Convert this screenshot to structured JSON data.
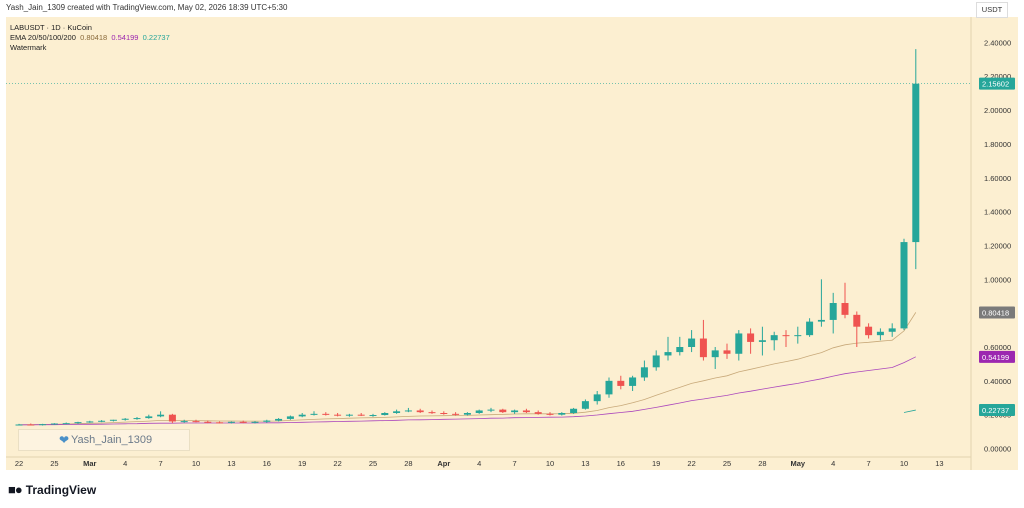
{
  "header": {
    "text": "Yash_Jain_1309 created with TradingView.com, May 02, 2026 18:39 UTC+5:30"
  },
  "legend": {
    "symbol": "LABUSDT · 1D · KuCoin",
    "ema_label": "EMA 20/50/100/200",
    "ema_values": [
      "0.80418",
      "0.54199",
      "0.22737"
    ],
    "watermark_label": "Watermark"
  },
  "watermark": {
    "text": "Yash_Jain_1309",
    "icon": "heart-icon"
  },
  "currency": "USDT",
  "footer": {
    "brand": "TradingView",
    "icon": "tradingview-logo-icon"
  },
  "colors": {
    "bg": "#fcefd1",
    "up": "#26a69a",
    "down": "#ef5350",
    "ema20": "#c8a97a",
    "ema50": "#ab47bc",
    "ema100": "#26a69a"
  },
  "chart_data": {
    "type": "candlestick",
    "ylim": [
      -0.05,
      2.55
    ],
    "y_ticks": [
      "2.40000",
      "2.20000",
      "2.00000",
      "1.80000",
      "1.60000",
      "1.40000",
      "1.20000",
      "1.00000",
      "0.80000",
      "0.60000",
      "0.40000",
      "0.20000",
      "0.00000"
    ],
    "x_ticks": [
      "22",
      "25",
      "Mar",
      "4",
      "7",
      "10",
      "13",
      "16",
      "19",
      "22",
      "25",
      "28",
      "Apr",
      "4",
      "7",
      "10",
      "13",
      "16",
      "19",
      "22",
      "25",
      "28",
      "May",
      "4",
      "7",
      "10",
      "13"
    ],
    "price_labels": [
      {
        "label": "2.15602",
        "value": 2.156,
        "color": "#26a69a"
      },
      {
        "label": "0.80418",
        "value": 0.80418,
        "color": "#7a7a7a"
      },
      {
        "label": "0.54199",
        "value": 0.54199,
        "color": "#9c27b0"
      },
      {
        "label": "0.22737",
        "value": 0.22737,
        "color": "#26a69a"
      }
    ],
    "candles": [
      [
        0.14,
        0.146,
        0.136,
        0.142
      ],
      [
        0.142,
        0.148,
        0.138,
        0.14
      ],
      [
        0.14,
        0.146,
        0.136,
        0.144
      ],
      [
        0.144,
        0.15,
        0.14,
        0.148
      ],
      [
        0.148,
        0.154,
        0.144,
        0.15
      ],
      [
        0.15,
        0.158,
        0.146,
        0.156
      ],
      [
        0.156,
        0.164,
        0.152,
        0.16
      ],
      [
        0.16,
        0.168,
        0.156,
        0.164
      ],
      [
        0.164,
        0.17,
        0.16,
        0.17
      ],
      [
        0.17,
        0.18,
        0.165,
        0.176
      ],
      [
        0.176,
        0.186,
        0.17,
        0.18
      ],
      [
        0.18,
        0.2,
        0.176,
        0.19
      ],
      [
        0.19,
        0.22,
        0.185,
        0.2
      ],
      [
        0.2,
        0.205,
        0.15,
        0.16
      ],
      [
        0.16,
        0.17,
        0.152,
        0.162
      ],
      [
        0.162,
        0.17,
        0.155,
        0.158
      ],
      [
        0.158,
        0.165,
        0.15,
        0.155
      ],
      [
        0.155,
        0.16,
        0.148,
        0.152
      ],
      [
        0.152,
        0.16,
        0.148,
        0.158
      ],
      [
        0.158,
        0.165,
        0.15,
        0.154
      ],
      [
        0.154,
        0.162,
        0.148,
        0.158
      ],
      [
        0.158,
        0.17,
        0.152,
        0.165
      ],
      [
        0.165,
        0.18,
        0.16,
        0.175
      ],
      [
        0.175,
        0.195,
        0.17,
        0.19
      ],
      [
        0.19,
        0.21,
        0.185,
        0.2
      ],
      [
        0.2,
        0.22,
        0.195,
        0.205
      ],
      [
        0.205,
        0.215,
        0.195,
        0.2
      ],
      [
        0.2,
        0.21,
        0.19,
        0.196
      ],
      [
        0.196,
        0.205,
        0.188,
        0.2
      ],
      [
        0.2,
        0.21,
        0.192,
        0.195
      ],
      [
        0.195,
        0.205,
        0.188,
        0.198
      ],
      [
        0.198,
        0.215,
        0.195,
        0.21
      ],
      [
        0.21,
        0.23,
        0.205,
        0.22
      ],
      [
        0.22,
        0.24,
        0.215,
        0.225
      ],
      [
        0.225,
        0.235,
        0.21,
        0.215
      ],
      [
        0.215,
        0.225,
        0.205,
        0.21
      ],
      [
        0.21,
        0.22,
        0.2,
        0.205
      ],
      [
        0.205,
        0.215,
        0.195,
        0.2
      ],
      [
        0.2,
        0.215,
        0.195,
        0.21
      ],
      [
        0.21,
        0.23,
        0.205,
        0.225
      ],
      [
        0.225,
        0.24,
        0.215,
        0.23
      ],
      [
        0.23,
        0.235,
        0.21,
        0.215
      ],
      [
        0.215,
        0.23,
        0.205,
        0.225
      ],
      [
        0.225,
        0.235,
        0.21,
        0.215
      ],
      [
        0.215,
        0.225,
        0.2,
        0.205
      ],
      [
        0.205,
        0.215,
        0.195,
        0.2
      ],
      [
        0.2,
        0.215,
        0.195,
        0.21
      ],
      [
        0.21,
        0.24,
        0.205,
        0.235
      ],
      [
        0.235,
        0.29,
        0.23,
        0.28
      ],
      [
        0.28,
        0.34,
        0.26,
        0.32
      ],
      [
        0.32,
        0.42,
        0.3,
        0.4
      ],
      [
        0.4,
        0.43,
        0.35,
        0.37
      ],
      [
        0.37,
        0.43,
        0.34,
        0.42
      ],
      [
        0.42,
        0.52,
        0.4,
        0.48
      ],
      [
        0.48,
        0.58,
        0.46,
        0.55
      ],
      [
        0.55,
        0.66,
        0.52,
        0.57
      ],
      [
        0.57,
        0.66,
        0.55,
        0.6
      ],
      [
        0.6,
        0.7,
        0.57,
        0.65
      ],
      [
        0.65,
        0.76,
        0.52,
        0.54
      ],
      [
        0.54,
        0.6,
        0.47,
        0.58
      ],
      [
        0.58,
        0.62,
        0.53,
        0.56
      ],
      [
        0.56,
        0.7,
        0.52,
        0.68
      ],
      [
        0.68,
        0.71,
        0.56,
        0.63
      ],
      [
        0.63,
        0.72,
        0.55,
        0.64
      ],
      [
        0.64,
        0.69,
        0.58,
        0.67
      ],
      [
        0.67,
        0.7,
        0.6,
        0.665
      ],
      [
        0.665,
        0.72,
        0.62,
        0.67
      ],
      [
        0.67,
        0.77,
        0.66,
        0.75
      ],
      [
        0.75,
        1.0,
        0.72,
        0.76
      ],
      [
        0.76,
        0.92,
        0.68,
        0.86
      ],
      [
        0.86,
        0.98,
        0.77,
        0.79
      ],
      [
        0.79,
        0.81,
        0.6,
        0.72
      ],
      [
        0.72,
        0.74,
        0.65,
        0.67
      ],
      [
        0.67,
        0.71,
        0.64,
        0.69
      ],
      [
        0.69,
        0.74,
        0.66,
        0.71
      ],
      [
        0.71,
        1.24,
        0.7,
        1.22
      ],
      [
        1.22,
        2.36,
        1.06,
        2.156
      ]
    ],
    "ema20": [
      0.14,
      0.141,
      0.142,
      0.143,
      0.145,
      0.147,
      0.149,
      0.151,
      0.153,
      0.156,
      0.159,
      0.162,
      0.166,
      0.166,
      0.166,
      0.165,
      0.164,
      0.163,
      0.163,
      0.162,
      0.162,
      0.162,
      0.163,
      0.166,
      0.169,
      0.172,
      0.175,
      0.177,
      0.179,
      0.181,
      0.182,
      0.184,
      0.187,
      0.19,
      0.192,
      0.193,
      0.194,
      0.195,
      0.196,
      0.198,
      0.2,
      0.202,
      0.204,
      0.205,
      0.205,
      0.205,
      0.206,
      0.208,
      0.215,
      0.225,
      0.242,
      0.254,
      0.27,
      0.29,
      0.315,
      0.338,
      0.361,
      0.385,
      0.4,
      0.417,
      0.43,
      0.453,
      0.468,
      0.484,
      0.5,
      0.514,
      0.528,
      0.548,
      0.567,
      0.595,
      0.613,
      0.623,
      0.628,
      0.634,
      0.64,
      0.695,
      0.80418
    ],
    "ema50": [
      0.14,
      0.14,
      0.141,
      0.141,
      0.142,
      0.143,
      0.143,
      0.144,
      0.145,
      0.146,
      0.147,
      0.149,
      0.15,
      0.15,
      0.151,
      0.151,
      0.151,
      0.151,
      0.151,
      0.151,
      0.151,
      0.152,
      0.152,
      0.154,
      0.155,
      0.157,
      0.158,
      0.16,
      0.161,
      0.162,
      0.164,
      0.165,
      0.167,
      0.169,
      0.17,
      0.171,
      0.173,
      0.174,
      0.175,
      0.177,
      0.179,
      0.18,
      0.182,
      0.183,
      0.184,
      0.185,
      0.186,
      0.188,
      0.192,
      0.198,
      0.206,
      0.213,
      0.22,
      0.231,
      0.243,
      0.256,
      0.269,
      0.283,
      0.293,
      0.304,
      0.314,
      0.328,
      0.339,
      0.351,
      0.363,
      0.374,
      0.385,
      0.399,
      0.412,
      0.428,
      0.442,
      0.452,
      0.461,
      0.47,
      0.479,
      0.508,
      0.54199
    ],
    "ema100": [
      0.2,
      0.2,
      0.2,
      0.2,
      0.2,
      0.2,
      0.2,
      0.2,
      0.2,
      0.2,
      0.2,
      0.2,
      0.2,
      0.2,
      0.2,
      0.2,
      0.2,
      0.2,
      0.2,
      0.2,
      0.2,
      0.2,
      0.2,
      0.2,
      0.2,
      0.2,
      0.2,
      0.2,
      0.2,
      0.2,
      0.2,
      0.2,
      0.2,
      0.2,
      0.2,
      0.2,
      0.2,
      0.2,
      0.2,
      0.2,
      0.2,
      0.2,
      0.2,
      0.2,
      0.2,
      0.2,
      0.2,
      0.2,
      0.2,
      0.2,
      0.2,
      0.2,
      0.2,
      0.2,
      0.2,
      0.2,
      0.2,
      0.2,
      0.2,
      0.2,
      0.2,
      0.2,
      0.2,
      0.2,
      0.2,
      0.2,
      0.2,
      0.2,
      0.2,
      0.2,
      0.2,
      0.2,
      0.2,
      0.2,
      0.2,
      0.213,
      0.22737
    ]
  }
}
